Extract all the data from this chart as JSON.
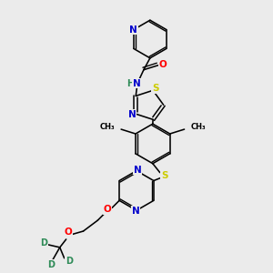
{
  "bg_color": "#ebebeb",
  "atom_colors": {
    "C": "#000000",
    "N": "#0000cc",
    "O": "#ff0000",
    "S": "#cccc00",
    "H": "#2e8b57",
    "D": "#2e8b57"
  },
  "figsize": [
    3.0,
    3.0
  ],
  "dpi": 100
}
